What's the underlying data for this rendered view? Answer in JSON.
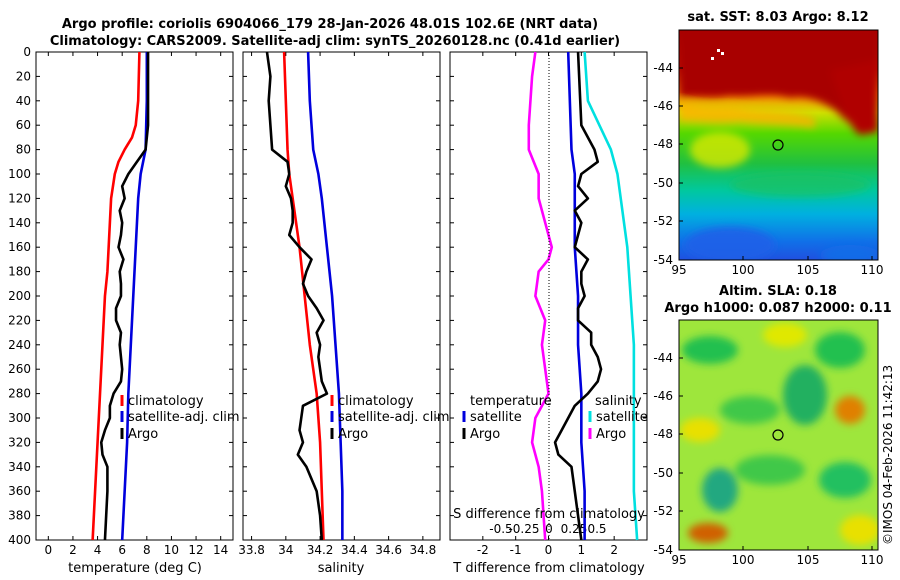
{
  "title_line1": "Argo profile: coriolis 6904066_179 28-Jan-2026 48.01S 102.6E (NRT data)",
  "title_line2": "Climatology: CARS2009. Satellite-adj clim: synTS_20260128.nc (0.41d earlier)",
  "colors": {
    "climatology": "#ff0000",
    "satellite": "#0000dd",
    "argo": "#000000",
    "t_diff": "#ff00ff",
    "s_diff": "#00e0e0"
  },
  "depth_ticks": [
    "0",
    "20",
    "40",
    "60",
    "80",
    "100",
    "120",
    "140",
    "160",
    "180",
    "200",
    "220",
    "240",
    "260",
    "280",
    "300",
    "320",
    "340",
    "360",
    "380",
    "400"
  ],
  "legend": {
    "climatology": "climatology",
    "satellite_adj": "satellite-adj. clim",
    "argo": "Argo",
    "satellite": "satellite",
    "temperature": "temperature",
    "salinity": "salinity"
  },
  "map_sst": {
    "title": "sat. SST: 8.03 Argo: 8.12",
    "lat_ticks": [
      "-44",
      "-46",
      "-48",
      "-50",
      "-52",
      "-54"
    ],
    "lon_ticks": [
      "95",
      "100",
      "105",
      "110"
    ]
  },
  "map_sla": {
    "title1": "Altim. SLA: 0.18",
    "title2": "Argo h1000: 0.087 h2000: 0.11",
    "lat_ticks": [
      "-44",
      "-46",
      "-48",
      "-50",
      "-52",
      "-54"
    ],
    "lon_ticks": [
      "95",
      "100",
      "105",
      "110"
    ]
  },
  "copyright": "©IMOS 04-Feb-2026 11:42:13",
  "chart_data": [
    {
      "type": "line",
      "name": "temperature",
      "xlabel": "temperature (deg C)",
      "ylabel": "depth",
      "xlim": [
        -1,
        15
      ],
      "ylim": [
        400,
        0
      ],
      "x_ticks": [
        "0",
        "2",
        "4",
        "6",
        "8",
        "10",
        "12",
        "14"
      ],
      "series": [
        {
          "name": "climatology",
          "depth": [
            0,
            40,
            60,
            70,
            80,
            90,
            100,
            120,
            140,
            160,
            180,
            200,
            240,
            280,
            320,
            360,
            400
          ],
          "values": [
            7.4,
            7.3,
            7.1,
            6.8,
            6.2,
            5.7,
            5.4,
            5.1,
            5.0,
            4.9,
            4.8,
            4.6,
            4.4,
            4.2,
            4.0,
            3.8,
            3.6
          ]
        },
        {
          "name": "satellite-adj. clim",
          "depth": [
            0,
            40,
            80,
            100,
            120,
            140,
            160,
            200,
            240,
            280,
            320,
            360,
            400
          ],
          "values": [
            8.0,
            8.0,
            7.9,
            7.5,
            7.3,
            7.2,
            7.1,
            6.9,
            6.7,
            6.5,
            6.4,
            6.2,
            6.0
          ]
        },
        {
          "name": "Argo",
          "depth": [
            0,
            60,
            80,
            90,
            100,
            110,
            120,
            130,
            140,
            150,
            160,
            170,
            180,
            190,
            200,
            210,
            220,
            230,
            240,
            250,
            260,
            270,
            280,
            290,
            300,
            310,
            320,
            330,
            340,
            360,
            380,
            400
          ],
          "values": [
            8.1,
            8.1,
            7.9,
            7.2,
            6.5,
            6.0,
            6.2,
            5.8,
            6.0,
            5.9,
            5.7,
            6.1,
            5.8,
            5.9,
            5.9,
            5.5,
            5.5,
            5.9,
            5.8,
            5.9,
            6.0,
            5.9,
            5.3,
            5.0,
            5.0,
            4.6,
            4.3,
            4.4,
            4.8,
            4.8,
            4.7,
            4.6
          ]
        }
      ]
    },
    {
      "type": "line",
      "name": "salinity",
      "xlabel": "salinity",
      "ylabel": "depth",
      "xlim": [
        33.75,
        34.9
      ],
      "ylim": [
        400,
        0
      ],
      "x_ticks": [
        "33.8",
        "34",
        "34.2",
        "34.4",
        "34.6",
        "34.8"
      ],
      "series": [
        {
          "name": "climatology",
          "depth": [
            0,
            40,
            80,
            100,
            120,
            160,
            200,
            240,
            280,
            300,
            320,
            360,
            400
          ],
          "values": [
            33.99,
            34.0,
            34.01,
            34.02,
            34.04,
            34.08,
            34.11,
            34.14,
            34.18,
            34.19,
            34.2,
            34.21,
            34.22
          ]
        },
        {
          "name": "satellite-adj. clim",
          "depth": [
            0,
            40,
            80,
            100,
            120,
            160,
            200,
            240,
            280,
            320,
            360,
            400
          ],
          "values": [
            34.13,
            34.14,
            34.16,
            34.19,
            34.21,
            34.24,
            34.27,
            34.29,
            34.31,
            34.32,
            34.33,
            34.33
          ]
        },
        {
          "name": "Argo",
          "depth": [
            0,
            20,
            40,
            60,
            80,
            90,
            100,
            110,
            120,
            130,
            140,
            150,
            160,
            170,
            180,
            190,
            200,
            210,
            220,
            230,
            240,
            250,
            260,
            270,
            280,
            290,
            300,
            310,
            320,
            330,
            340,
            360,
            380,
            400
          ],
          "values": [
            33.89,
            33.91,
            33.9,
            33.91,
            33.92,
            34.01,
            34.02,
            34.0,
            34.03,
            34.04,
            34.04,
            34.02,
            34.08,
            34.15,
            34.12,
            34.1,
            34.13,
            34.18,
            34.22,
            34.18,
            34.2,
            34.19,
            34.2,
            34.21,
            34.24,
            34.1,
            34.09,
            34.08,
            34.1,
            34.07,
            34.12,
            34.18,
            34.2,
            34.21
          ]
        }
      ]
    },
    {
      "type": "line",
      "name": "difference",
      "xlabel": "T difference from climatology",
      "xlabel_top": "S difference from climatology",
      "xlim": [
        -3,
        3
      ],
      "ylim": [
        400,
        0
      ],
      "x_ticks": [
        "-2",
        "-1",
        "0",
        "1",
        "2"
      ],
      "x_ticks_top": [
        "-0.5",
        "-0.25",
        "0",
        "0.25",
        "0.5"
      ],
      "series": [
        {
          "name": "temperature satellite",
          "depth": [
            0,
            80,
            100,
            160,
            200,
            240,
            280,
            320,
            360,
            400
          ],
          "values": [
            0.6,
            0.7,
            0.8,
            0.8,
            0.9,
            0.9,
            1.0,
            1.0,
            1.1,
            1.1
          ]
        },
        {
          "name": "temperature Argo",
          "depth": [
            0,
            60,
            80,
            90,
            100,
            110,
            120,
            130,
            140,
            150,
            160,
            170,
            180,
            190,
            200,
            210,
            220,
            230,
            240,
            250,
            260,
            270,
            280,
            290,
            300,
            310,
            320,
            330,
            340,
            360,
            380,
            400
          ],
          "values": [
            0.9,
            1.0,
            1.4,
            1.5,
            1.0,
            0.9,
            1.2,
            0.8,
            1.0,
            0.9,
            0.8,
            1.2,
            1.0,
            1.0,
            1.1,
            0.9,
            0.9,
            1.3,
            1.3,
            1.5,
            1.6,
            1.5,
            1.2,
            0.8,
            0.6,
            0.4,
            0.2,
            0.3,
            0.7,
            0.8,
            0.9,
            1.0
          ]
        },
        {
          "name": "salinity satellite",
          "depth": [
            0,
            40,
            80,
            100,
            120,
            160,
            200,
            240,
            280,
            320,
            360,
            400
          ],
          "values": [
            1.1,
            1.2,
            1.9,
            2.1,
            2.2,
            2.4,
            2.5,
            2.6,
            2.6,
            2.6,
            2.6,
            2.7
          ]
        },
        {
          "name": "salinity Argo",
          "depth": [
            0,
            20,
            60,
            80,
            100,
            120,
            140,
            160,
            170,
            180,
            200,
            220,
            240,
            260,
            280,
            300,
            320,
            340,
            360,
            400
          ],
          "values": [
            -0.4,
            -0.5,
            -0.6,
            -0.6,
            -0.3,
            -0.3,
            -0.1,
            0.1,
            0.0,
            -0.3,
            -0.4,
            -0.1,
            -0.2,
            -0.1,
            0.0,
            -0.4,
            -0.5,
            -0.3,
            -0.2,
            -0.1
          ]
        }
      ]
    }
  ]
}
